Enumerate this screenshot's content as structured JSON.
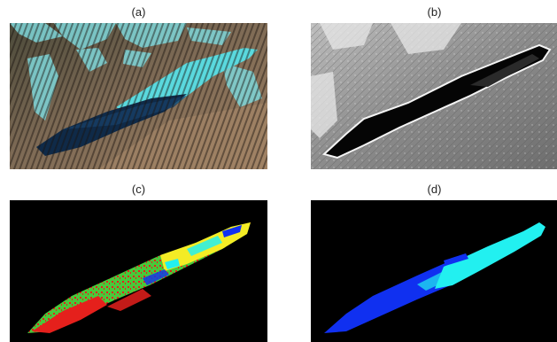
{
  "figure": {
    "panels": [
      {
        "label": "(a)",
        "kind": "satellite-false-color-image"
      },
      {
        "label": "(b)",
        "kind": "grayscale-texture-image"
      },
      {
        "label": "(c)",
        "kind": "classified-lake-map-multicolor"
      },
      {
        "label": "(d)",
        "kind": "classified-lake-map-blue-cyan"
      }
    ],
    "colors": {
      "water_dark": "#0e2a4a",
      "ice_cyan": "#4fd6dc",
      "terrain_brown": "#8a6f56",
      "class_green": "#49c83a",
      "class_red": "#e5201c",
      "class_yellow": "#f4ec25",
      "class_cyan": "#22f0f0",
      "class_blue": "#1030f0",
      "background_black": "#000000"
    }
  }
}
